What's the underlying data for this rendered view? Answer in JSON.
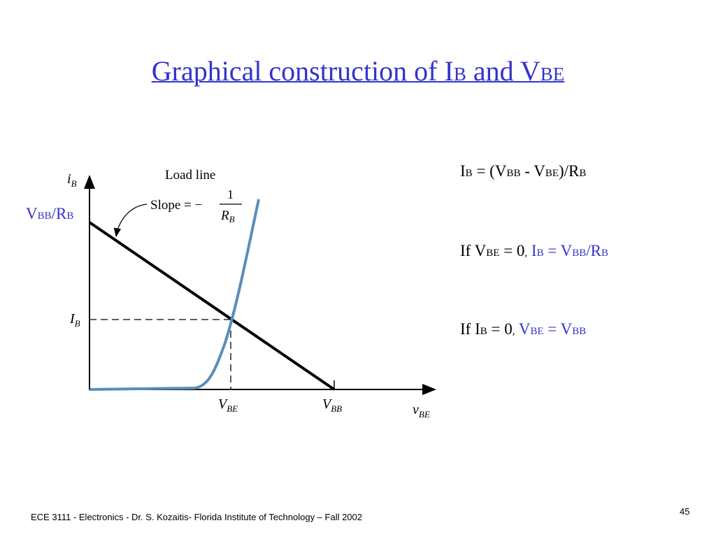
{
  "title": {
    "text1": "Graphical construction of I",
    "sub1": "B",
    "text2": " and V",
    "sub2": "BE"
  },
  "equations": [
    [
      "I",
      "B",
      " = (V",
      "BB",
      " - V",
      "BE",
      ")/R",
      "B"
    ],
    [
      "If V",
      "BE",
      " = 0",
      ",",
      " I",
      "B",
      " = V",
      "BB",
      "/R",
      "B"
    ],
    [
      "If I",
      "B",
      " = 0",
      ",",
      " V",
      "BE",
      " = V",
      "BB"
    ]
  ],
  "graph": {
    "y_axis_label": [
      "i",
      "B"
    ],
    "x_axis_label": [
      "v",
      "BE"
    ],
    "load_line_label": "Load line",
    "slope_label": "Slope = −",
    "slope_numerator": "1",
    "slope_denominator": [
      "R",
      "B"
    ],
    "intercept_label": [
      "V",
      "BB",
      "/R",
      "B"
    ],
    "ib_label": [
      "I",
      "B"
    ],
    "vbe_label": [
      "V",
      "BE"
    ],
    "vbb_label": [
      "V",
      "BB"
    ]
  },
  "footer": {
    "text": "ECE 3111 - Electronics - Dr. S. Kozaitis- Florida Institute of Technology – Fall 2002",
    "page": "45"
  }
}
